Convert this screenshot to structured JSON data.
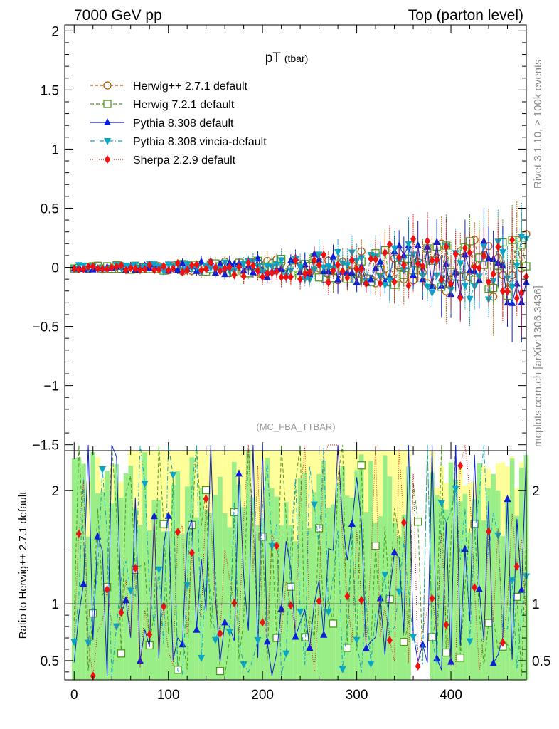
{
  "header": {
    "left": "7000 GeV pp",
    "right": "Top (parton level)"
  },
  "side_labels": {
    "rivet": "Rivet 3.1.10, ≥ 100k events",
    "mcplots": "mcplots.cern.ch [arXiv:1306.3436]"
  },
  "chart_data": [
    {
      "type": "scatter",
      "panel": "main",
      "title": "pT",
      "title_sub": "(tbar)",
      "watermark": "(MC_FBA_TTBAR)",
      "xlabel": "",
      "ylabel": "",
      "xlim": [
        -10,
        480
      ],
      "ylim": [
        -1.55,
        2.05
      ],
      "x_ticks": [
        0,
        100,
        200,
        300,
        400
      ],
      "y_ticks": [
        -1.5,
        -1,
        -0.5,
        0,
        0.5,
        1,
        1.5,
        2
      ],
      "y_tick_labels": [
        "−1.5",
        "−1",
        "−0.5",
        "0",
        "0.5",
        "1",
        "1.5",
        "2"
      ],
      "legend_position": "top-left",
      "series": [
        {
          "name": "Herwig++ 2.7.1 default",
          "color": "#b35900",
          "marker": "open-circle",
          "dash": "4,3",
          "seed": 11,
          "spread": 0.13
        },
        {
          "name": "Herwig 7.2.1 default",
          "color": "#4c9a1a",
          "marker": "open-square",
          "dash": "5,3",
          "seed": 23,
          "spread": 0.12
        },
        {
          "name": "Pythia 8.308 default",
          "color": "#0a1fd6",
          "marker": "triangle-up",
          "dash": "",
          "seed": 37,
          "spread": 0.16
        },
        {
          "name": "Pythia 8.308 vincia-default",
          "color": "#0aa5c4",
          "marker": "triangle-down",
          "dash": "6,3,1,3",
          "seed": 41,
          "spread": 0.15
        },
        {
          "name": "Sherpa 2.2.9 default",
          "color": "#ee1111",
          "marker": "diamond",
          "dash": "1,2",
          "seed": 53,
          "spread": 0.18
        }
      ],
      "x_points": [
        0,
        485,
        5
      ],
      "grid": false
    },
    {
      "type": "scatter",
      "panel": "ratio",
      "ylabel": "Ratio to Herwig++ 2.7.1 default",
      "xlim": [
        -10,
        480
      ],
      "ylim": [
        0.33,
        2.35
      ],
      "y_ticks": [
        0.5,
        1,
        2
      ],
      "y_tick_labels": [
        "0.5",
        "1",
        "2"
      ],
      "x_ticks": [
        0,
        100,
        200,
        300,
        400
      ],
      "x_tick_labels": [
        "0",
        "100",
        "200",
        "300",
        "400"
      ],
      "reference_line": 1,
      "band_colors": {
        "outer": "#ffff99",
        "inner": "#99ee88"
      }
    }
  ]
}
